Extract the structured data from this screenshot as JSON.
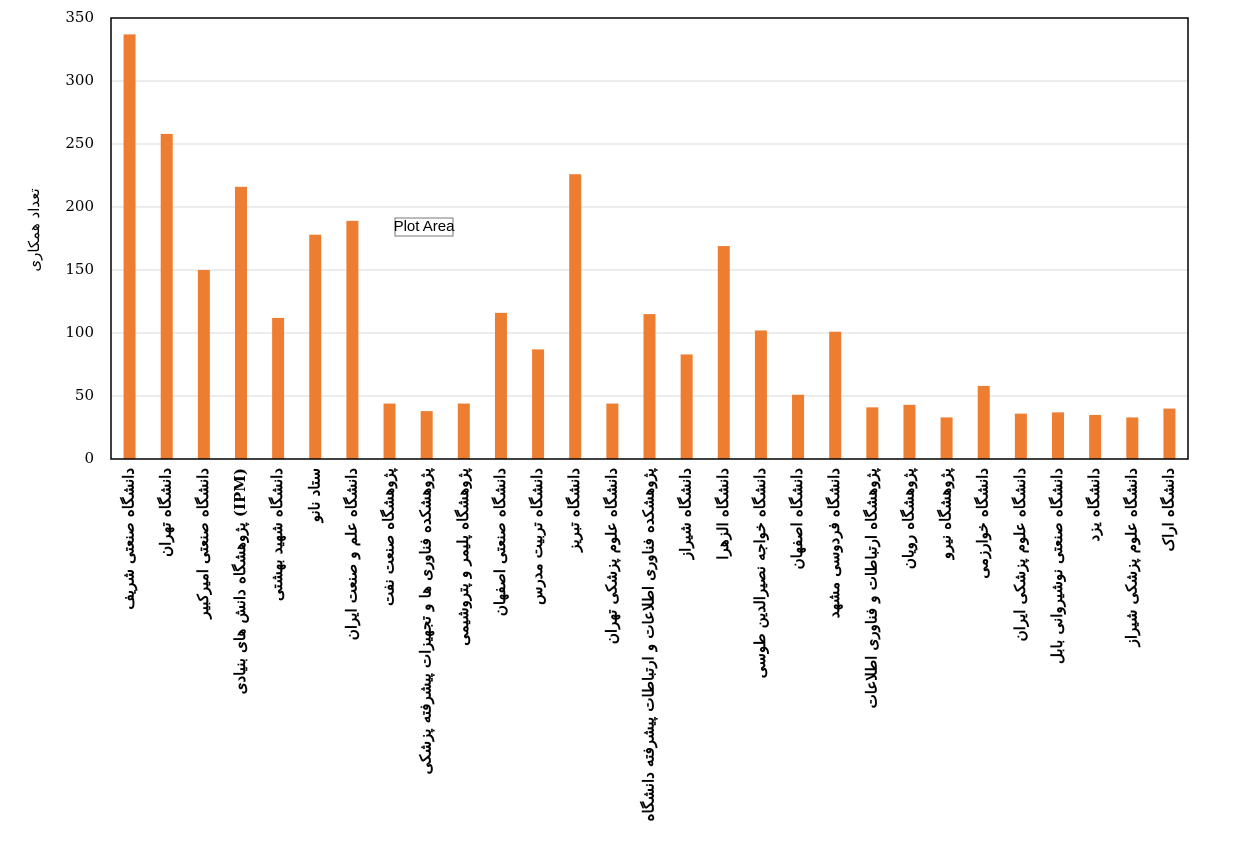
{
  "chart_data": {
    "type": "bar",
    "y_label": "تعداد همکاری",
    "tooltip": "Plot Area",
    "categories": [
      "دانشگاه صنعتی شریف",
      "دانشگاه تهران",
      "دانشگاه صنعتی امیرکبیر",
      "پژوهشگاه دانش های بنیادی (IPM)",
      "دانشگاه شهید بهشتی",
      "ستاد نانو",
      "دانشگاه علم و صنعت ایران",
      "پژوهشگاه صنعت نفت",
      "پژوهشکده فناوری ها و تجهیزات پیشرفته پزشکی",
      "پژوهشگاه پلیمر و پتروشیمی",
      "دانشگاه صنعتی اصفهان",
      "دانشگاه تربیت مدرس",
      "دانشگاه تبریز",
      "دانشگاه علوم پزشکی تهران",
      "پژوهشکده فناوری اطلاعات و ارتباطات پیشرفته دانشگاه",
      "دانشگاه شیراز",
      "دانشگاه الزهرا",
      "دانشگاه خواجه نصیرالدین طوسی",
      "دانشگاه اصفهان",
      "دانشگاه فردوسی مشهد",
      "پژوهشگاه ارتباطات و فناوری اطلاعات",
      "پژوهشگاه رویان",
      "پژوهشگاه نیرو",
      "دانشگاه خوارزمی",
      "دانشگاه علوم پزشکی ایران",
      "دانشگاه صنعتی نوشیروانی بابل",
      "دانشگاه یزد",
      "دانشگاه علوم پزشکی شیراز",
      "دانشگاه اراک"
    ],
    "values": [
      337,
      258,
      150,
      216,
      112,
      178,
      189,
      44,
      38,
      44,
      116,
      87,
      226,
      44,
      115,
      83,
      169,
      102,
      51,
      101,
      41,
      43,
      33,
      58,
      36,
      37,
      35,
      33,
      40
    ],
    "color": "#ed7d31",
    "ylim": [
      0,
      350
    ],
    "yticks": [
      0,
      50,
      100,
      150,
      200,
      250,
      300,
      350
    ],
    "grid": true
  }
}
